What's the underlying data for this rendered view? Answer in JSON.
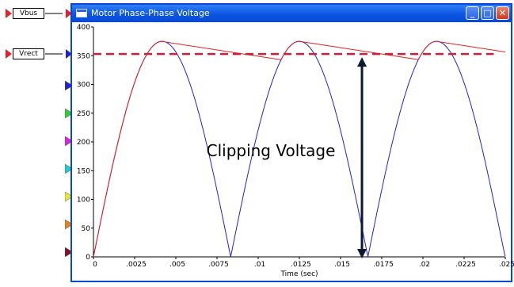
{
  "ports": {
    "vbus": {
      "label": "Vbus"
    },
    "vrect": {
      "label": "Vrect"
    }
  },
  "window": {
    "title": "Motor Phase-Phase Voltage",
    "buttons": {
      "minimize": "_",
      "maximize": "□",
      "close": "✕"
    }
  },
  "colors": {
    "port_red": "#e8202a",
    "trace_blue": "#2222cc",
    "trace_red": "#e02020",
    "threshold": "#cc1f3a",
    "arrow": "#0b1a2e",
    "titlebar": "#0b55e3"
  },
  "input_markers": [
    {
      "name": "marker-blue",
      "color": "#2222cc"
    },
    {
      "name": "marker-green",
      "color": "#33cc33"
    },
    {
      "name": "marker-magenta",
      "color": "#dd22dd"
    },
    {
      "name": "marker-cyan",
      "color": "#22cccc"
    },
    {
      "name": "marker-yellow",
      "color": "#e8e830"
    },
    {
      "name": "marker-orange",
      "color": "#e8801a"
    },
    {
      "name": "marker-darkred",
      "color": "#8a1020"
    }
  ],
  "chart_data": {
    "type": "line",
    "xlabel": "Time (sec)",
    "xlim": [
      0,
      0.025
    ],
    "ylim": [
      0,
      400
    ],
    "x_ticks": [
      {
        "v": 0,
        "label": "0"
      },
      {
        "v": 0.0025,
        "label": ".0025"
      },
      {
        "v": 0.005,
        "label": ".005"
      },
      {
        "v": 0.0075,
        "label": ".0075"
      },
      {
        "v": 0.01,
        "label": ".01"
      },
      {
        "v": 0.0125,
        "label": ".0125"
      },
      {
        "v": 0.015,
        "label": ".015"
      },
      {
        "v": 0.0175,
        "label": ".0175"
      },
      {
        "v": 0.02,
        "label": ".02"
      },
      {
        "v": 0.0225,
        "label": ".0225"
      },
      {
        "v": 0.025,
        "label": ".025"
      }
    ],
    "y_ticks": [
      {
        "v": 0,
        "label": "0"
      },
      {
        "v": 50,
        "label": "50"
      },
      {
        "v": 100,
        "label": "100"
      },
      {
        "v": 150,
        "label": "150"
      },
      {
        "v": 200,
        "label": "200"
      },
      {
        "v": 250,
        "label": "250"
      },
      {
        "v": 300,
        "label": "300"
      },
      {
        "v": 350,
        "label": "350"
      },
      {
        "v": 400,
        "label": "400"
      }
    ],
    "series": [
      {
        "style": "rectified sine",
        "amplitude": 375,
        "half_period": 0.00833,
        "phase_shift": 0.0,
        "color": "#2222cc"
      },
      {
        "style": "peak-hold with decay",
        "peaks": [
          {
            "x": 0.0041,
            "y": 375
          },
          {
            "x": 0.0125,
            "y": 375
          },
          {
            "x": 0.0208,
            "y": 375
          }
        ],
        "decay_per_ms": 4.4,
        "color": "#e02020"
      }
    ],
    "threshold": {
      "y": 353,
      "color": "#cc1f3a",
      "style": "dashed"
    },
    "annotation": {
      "text": "Clipping Voltage",
      "arrow_x": 0.0163,
      "arrow_from": 0,
      "arrow_to": 353
    }
  }
}
